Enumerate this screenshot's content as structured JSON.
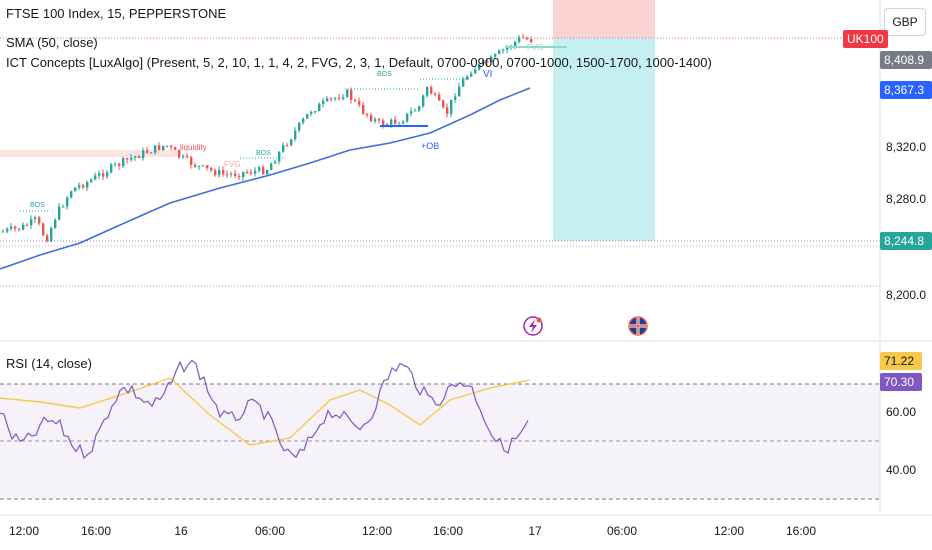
{
  "legend": {
    "symbol": "FTSE 100 Index, 15, PEPPERSTONE",
    "sma": "SMA (50, close)",
    "ict": "ICT Concepts [LuxAlgo] (Present, 5, 2, 10, 1, 1, 4, 2, FVG, 2, 3, 1, Default, 0700-0900, 0700-1000, 1500-1700, 1000-1400)"
  },
  "currency": "GBP",
  "price_tags": {
    "symbol_tag": "UK100",
    "last": "8,408.9",
    "sma": "8,367.3",
    "level": "8,244.8"
  },
  "price_axis": [
    "8,320.0",
    "8,280.0",
    "8,200.0"
  ],
  "rsi": {
    "title": "RSI (14, close)",
    "tag_ma": "71.22",
    "tag_rsi": "70.30",
    "axis": [
      "60.00",
      "40.00"
    ]
  },
  "time_axis": [
    "12:00",
    "16:00",
    "16",
    "06:00",
    "12:00",
    "16:00",
    "17",
    "06:00",
    "12:00",
    "16:00"
  ],
  "annotations": {
    "bos": "BOS",
    "liquidity": "liquidity",
    "fvg": "FVG",
    "ob": "+OB",
    "vi": "VI"
  },
  "colors": {
    "up": "#26a69a",
    "down": "#ef5350",
    "sma": "#3f6fd9",
    "rsi": "#7e57c2",
    "rsi_ma": "#f7c948",
    "price_line": "#e57373",
    "target_zone": "#b9ecef",
    "stop_zone": "#fbd3d3"
  },
  "icons": [
    "lightning-event-icon",
    "uk-flag-icon"
  ]
}
